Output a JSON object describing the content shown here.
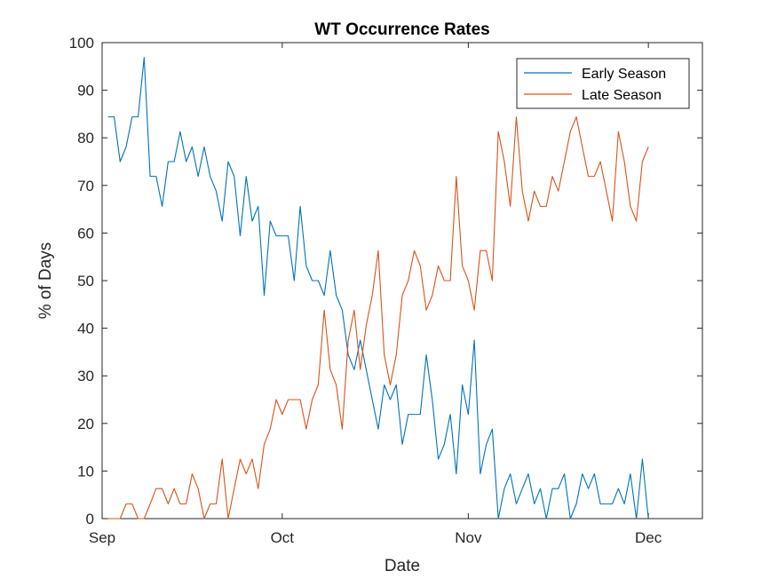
{
  "chart_data": {
    "type": "line",
    "title": "WT Occurrence Rates",
    "xlabel": "Date",
    "ylabel": "% of Days",
    "x_axis_type": "date",
    "xlim": [
      "2001-09-01",
      "2001-12-10"
    ],
    "ylim": [
      0,
      100
    ],
    "x_ticks": [
      {
        "date": "2001-09-01",
        "label": "Sep"
      },
      {
        "date": "2001-10-01",
        "label": "Oct"
      },
      {
        "date": "2001-11-01",
        "label": "Nov"
      },
      {
        "date": "2001-12-01",
        "label": "Dec"
      }
    ],
    "y_ticks": [
      0,
      10,
      20,
      30,
      40,
      50,
      60,
      70,
      80,
      90,
      100
    ],
    "grid": false,
    "legend_position": "top-right",
    "series": [
      {
        "name": "Early Season",
        "color": "#0072BD",
        "points": [
          [
            "2001-09-02",
            84.4
          ],
          [
            "2001-09-03",
            84.4
          ],
          [
            "2001-09-04",
            75.0
          ],
          [
            "2001-09-05",
            78.1
          ],
          [
            "2001-09-06",
            84.4
          ],
          [
            "2001-09-07",
            84.4
          ],
          [
            "2001-09-08",
            96.9
          ],
          [
            "2001-09-09",
            71.9
          ],
          [
            "2001-09-10",
            71.9
          ],
          [
            "2001-09-11",
            65.6
          ],
          [
            "2001-09-12",
            75.0
          ],
          [
            "2001-09-13",
            75.0
          ],
          [
            "2001-09-14",
            81.3
          ],
          [
            "2001-09-15",
            75.0
          ],
          [
            "2001-09-16",
            78.1
          ],
          [
            "2001-09-17",
            71.9
          ],
          [
            "2001-09-18",
            78.1
          ],
          [
            "2001-09-19",
            71.9
          ],
          [
            "2001-09-20",
            68.8
          ],
          [
            "2001-09-21",
            62.5
          ],
          [
            "2001-09-22",
            75.0
          ],
          [
            "2001-09-23",
            71.9
          ],
          [
            "2001-09-24",
            59.4
          ],
          [
            "2001-09-25",
            71.9
          ],
          [
            "2001-09-26",
            62.5
          ],
          [
            "2001-09-27",
            65.6
          ],
          [
            "2001-09-28",
            46.9
          ],
          [
            "2001-09-29",
            62.5
          ],
          [
            "2001-09-30",
            59.4
          ],
          [
            "2001-10-01",
            59.4
          ],
          [
            "2001-10-02",
            59.4
          ],
          [
            "2001-10-03",
            50.0
          ],
          [
            "2001-10-04",
            65.6
          ],
          [
            "2001-10-05",
            53.1
          ],
          [
            "2001-10-06",
            50.0
          ],
          [
            "2001-10-07",
            50.0
          ],
          [
            "2001-10-08",
            46.9
          ],
          [
            "2001-10-09",
            56.3
          ],
          [
            "2001-10-10",
            46.9
          ],
          [
            "2001-10-11",
            43.8
          ],
          [
            "2001-10-12",
            34.4
          ],
          [
            "2001-10-13",
            31.3
          ],
          [
            "2001-10-14",
            37.5
          ],
          [
            "2001-10-15",
            31.3
          ],
          [
            "2001-10-16",
            25.0
          ],
          [
            "2001-10-17",
            18.8
          ],
          [
            "2001-10-18",
            28.1
          ],
          [
            "2001-10-19",
            25.0
          ],
          [
            "2001-10-20",
            28.1
          ],
          [
            "2001-10-21",
            15.6
          ],
          [
            "2001-10-22",
            21.9
          ],
          [
            "2001-10-23",
            21.9
          ],
          [
            "2001-10-24",
            21.9
          ],
          [
            "2001-10-25",
            34.4
          ],
          [
            "2001-10-26",
            25.0
          ],
          [
            "2001-10-27",
            12.5
          ],
          [
            "2001-10-28",
            15.6
          ],
          [
            "2001-10-29",
            21.9
          ],
          [
            "2001-10-30",
            9.4
          ],
          [
            "2001-10-31",
            28.1
          ],
          [
            "2001-11-01",
            21.9
          ],
          [
            "2001-11-02",
            37.5
          ],
          [
            "2001-11-03",
            9.4
          ],
          [
            "2001-11-04",
            15.6
          ],
          [
            "2001-11-05",
            18.8
          ],
          [
            "2001-11-06",
            0.0
          ],
          [
            "2001-11-07",
            6.3
          ],
          [
            "2001-11-08",
            9.4
          ],
          [
            "2001-11-09",
            3.1
          ],
          [
            "2001-11-10",
            6.3
          ],
          [
            "2001-11-11",
            9.4
          ],
          [
            "2001-11-12",
            3.1
          ],
          [
            "2001-11-13",
            6.3
          ],
          [
            "2001-11-14",
            0.0
          ],
          [
            "2001-11-15",
            6.3
          ],
          [
            "2001-11-16",
            6.3
          ],
          [
            "2001-11-17",
            9.4
          ],
          [
            "2001-11-18",
            0.0
          ],
          [
            "2001-11-19",
            3.1
          ],
          [
            "2001-11-20",
            9.4
          ],
          [
            "2001-11-21",
            6.3
          ],
          [
            "2001-11-22",
            9.4
          ],
          [
            "2001-11-23",
            3.1
          ],
          [
            "2001-11-24",
            3.1
          ],
          [
            "2001-11-25",
            3.1
          ],
          [
            "2001-11-26",
            6.3
          ],
          [
            "2001-11-27",
            3.1
          ],
          [
            "2001-11-28",
            9.4
          ],
          [
            "2001-11-29",
            0.0
          ],
          [
            "2001-11-30",
            12.5
          ],
          [
            "2001-12-01",
            0.0
          ]
        ]
      },
      {
        "name": "Late Season",
        "color": "#D95319",
        "points": [
          [
            "2001-09-02",
            0.0
          ],
          [
            "2001-09-03",
            0.0
          ],
          [
            "2001-09-04",
            0.0
          ],
          [
            "2001-09-05",
            3.1
          ],
          [
            "2001-09-06",
            3.1
          ],
          [
            "2001-09-07",
            0.0
          ],
          [
            "2001-09-08",
            0.0
          ],
          [
            "2001-09-09",
            3.1
          ],
          [
            "2001-09-10",
            6.3
          ],
          [
            "2001-09-11",
            6.3
          ],
          [
            "2001-09-12",
            3.1
          ],
          [
            "2001-09-13",
            6.3
          ],
          [
            "2001-09-14",
            3.1
          ],
          [
            "2001-09-15",
            3.1
          ],
          [
            "2001-09-16",
            9.4
          ],
          [
            "2001-09-17",
            6.3
          ],
          [
            "2001-09-18",
            0.0
          ],
          [
            "2001-09-19",
            3.1
          ],
          [
            "2001-09-20",
            3.1
          ],
          [
            "2001-09-21",
            12.5
          ],
          [
            "2001-09-22",
            0.0
          ],
          [
            "2001-09-23",
            6.3
          ],
          [
            "2001-09-24",
            12.5
          ],
          [
            "2001-09-25",
            9.4
          ],
          [
            "2001-09-26",
            12.5
          ],
          [
            "2001-09-27",
            6.3
          ],
          [
            "2001-09-28",
            15.6
          ],
          [
            "2001-09-29",
            18.8
          ],
          [
            "2001-09-30",
            25.0
          ],
          [
            "2001-10-01",
            21.9
          ],
          [
            "2001-10-02",
            25.0
          ],
          [
            "2001-10-03",
            25.0
          ],
          [
            "2001-10-04",
            25.0
          ],
          [
            "2001-10-05",
            18.8
          ],
          [
            "2001-10-06",
            25.0
          ],
          [
            "2001-10-07",
            28.1
          ],
          [
            "2001-10-08",
            43.8
          ],
          [
            "2001-10-09",
            31.3
          ],
          [
            "2001-10-10",
            28.1
          ],
          [
            "2001-10-11",
            18.8
          ],
          [
            "2001-10-12",
            37.5
          ],
          [
            "2001-10-13",
            43.8
          ],
          [
            "2001-10-14",
            31.3
          ],
          [
            "2001-10-15",
            40.6
          ],
          [
            "2001-10-16",
            46.9
          ],
          [
            "2001-10-17",
            56.3
          ],
          [
            "2001-10-18",
            34.4
          ],
          [
            "2001-10-19",
            28.1
          ],
          [
            "2001-10-20",
            34.4
          ],
          [
            "2001-10-21",
            46.9
          ],
          [
            "2001-10-22",
            50.0
          ],
          [
            "2001-10-23",
            56.3
          ],
          [
            "2001-10-24",
            53.1
          ],
          [
            "2001-10-25",
            43.8
          ],
          [
            "2001-10-26",
            46.9
          ],
          [
            "2001-10-27",
            53.1
          ],
          [
            "2001-10-28",
            50.0
          ],
          [
            "2001-10-29",
            50.0
          ],
          [
            "2001-10-30",
            71.9
          ],
          [
            "2001-10-31",
            53.1
          ],
          [
            "2001-11-01",
            50.0
          ],
          [
            "2001-11-02",
            43.8
          ],
          [
            "2001-11-03",
            56.3
          ],
          [
            "2001-11-04",
            56.3
          ],
          [
            "2001-11-05",
            50.0
          ],
          [
            "2001-11-06",
            81.3
          ],
          [
            "2001-11-07",
            75.0
          ],
          [
            "2001-11-08",
            65.6
          ],
          [
            "2001-11-09",
            84.4
          ],
          [
            "2001-11-10",
            68.8
          ],
          [
            "2001-11-11",
            62.5
          ],
          [
            "2001-11-12",
            68.8
          ],
          [
            "2001-11-13",
            65.6
          ],
          [
            "2001-11-14",
            65.6
          ],
          [
            "2001-11-15",
            71.9
          ],
          [
            "2001-11-16",
            68.8
          ],
          [
            "2001-11-17",
            75.0
          ],
          [
            "2001-11-18",
            81.3
          ],
          [
            "2001-11-19",
            84.4
          ],
          [
            "2001-11-20",
            78.1
          ],
          [
            "2001-11-21",
            71.9
          ],
          [
            "2001-11-22",
            71.9
          ],
          [
            "2001-11-23",
            75.0
          ],
          [
            "2001-11-24",
            68.8
          ],
          [
            "2001-11-25",
            62.5
          ],
          [
            "2001-11-26",
            81.3
          ],
          [
            "2001-11-27",
            75.0
          ],
          [
            "2001-11-28",
            65.6
          ],
          [
            "2001-11-29",
            62.5
          ],
          [
            "2001-11-30",
            75.0
          ],
          [
            "2001-12-01",
            78.1
          ]
        ]
      }
    ]
  }
}
